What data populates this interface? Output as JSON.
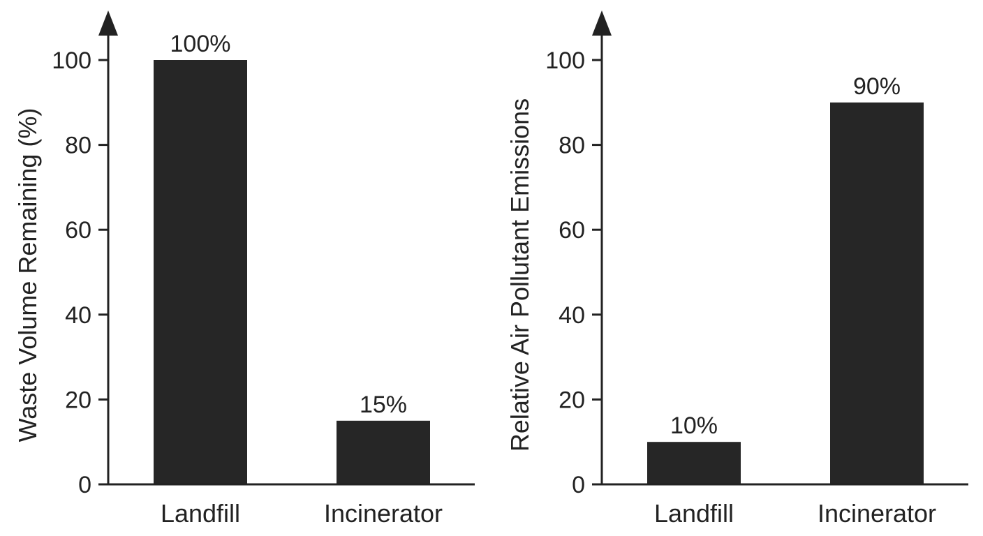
{
  "chart_data": [
    {
      "type": "bar",
      "categories": [
        "Landfill",
        "Incinerator"
      ],
      "values": [
        100,
        15
      ],
      "data_labels": [
        "100%",
        "15%"
      ],
      "title": "",
      "xlabel": "",
      "ylabel": "Waste Volume Remaining (%)",
      "ylim": [
        0,
        100
      ],
      "yticks": [
        0,
        20,
        40,
        60,
        80,
        100
      ],
      "ytick_labels": [
        "0",
        "20",
        "40",
        "60",
        "80",
        "100"
      ],
      "grid": false,
      "y_axis_arrow": true,
      "bar_color": "#262626"
    },
    {
      "type": "bar",
      "categories": [
        "Landfill",
        "Incinerator"
      ],
      "values": [
        10,
        90
      ],
      "data_labels": [
        "10%",
        "90%"
      ],
      "title": "",
      "xlabel": "",
      "ylabel": "Relative Air Pollutant Emissions",
      "ylim": [
        0,
        100
      ],
      "yticks": [
        0,
        20,
        40,
        60,
        80,
        100
      ],
      "ytick_labels": [
        "0",
        "20",
        "40",
        "60",
        "80",
        "100"
      ],
      "grid": false,
      "y_axis_arrow": true,
      "bar_color": "#262626"
    }
  ]
}
